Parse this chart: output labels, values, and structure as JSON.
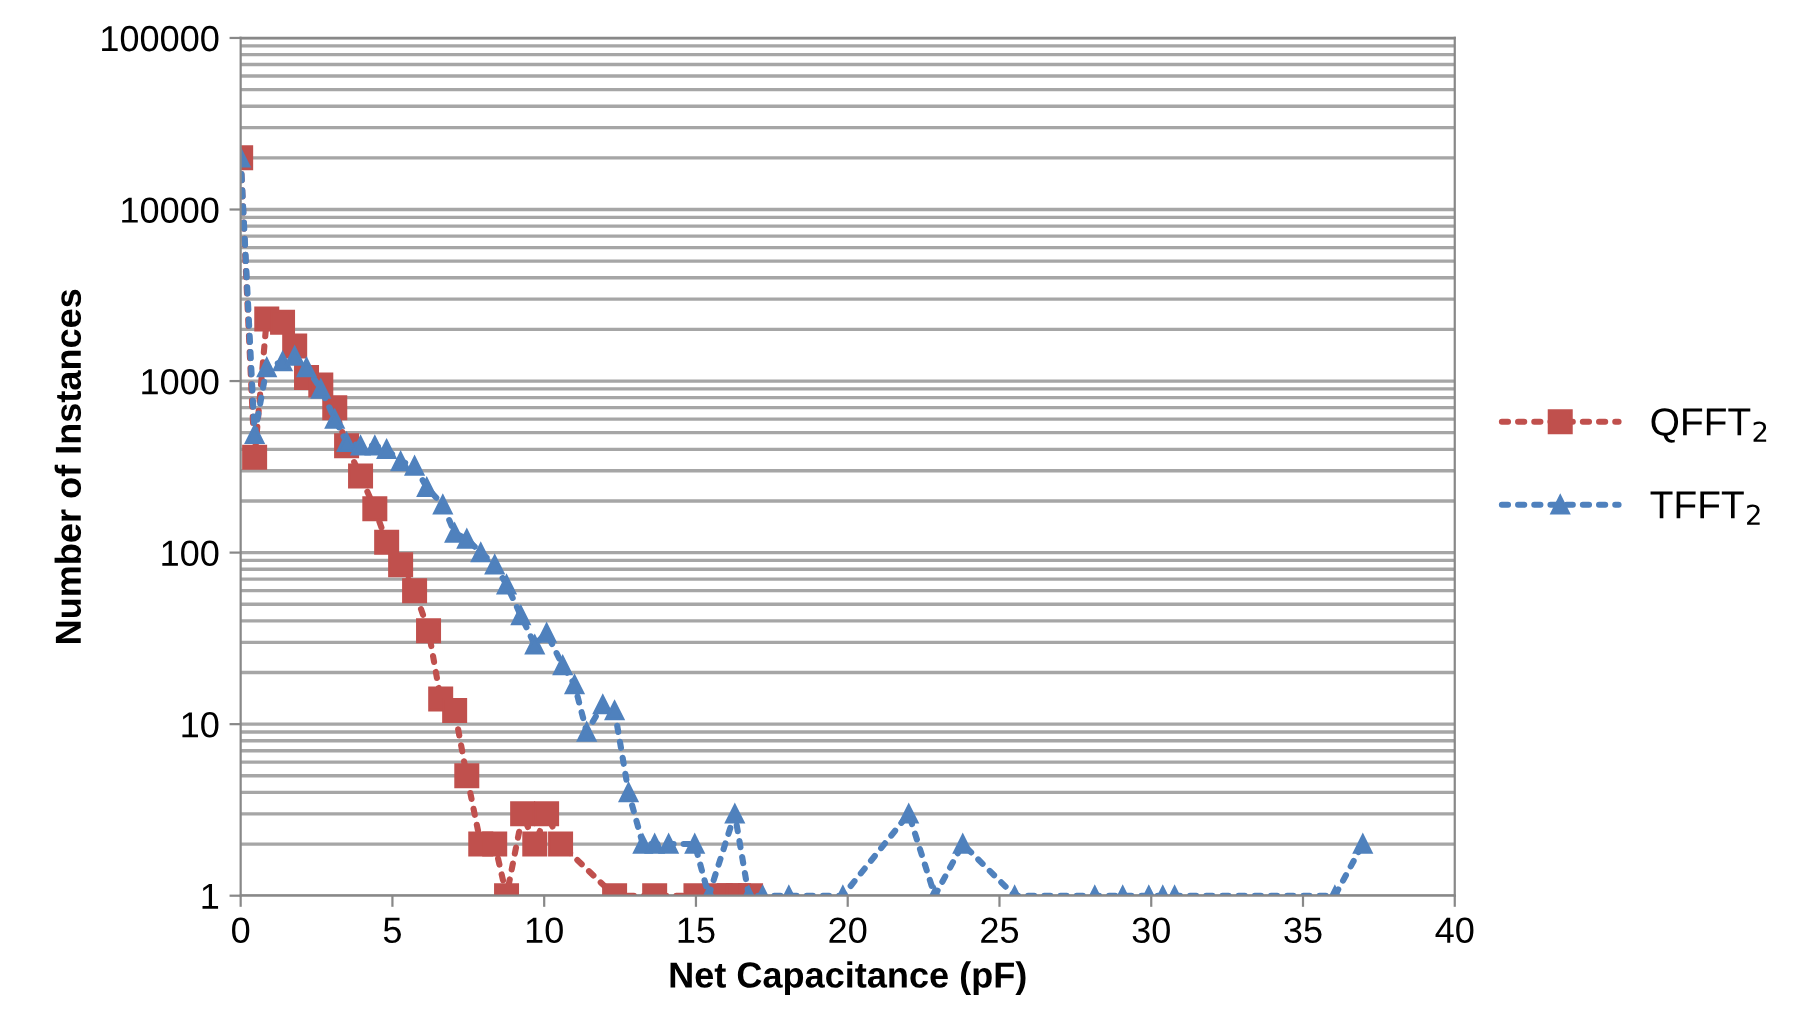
{
  "chart_data": {
    "type": "line",
    "xlabel": "Net Capacitance (pF)",
    "ylabel": "Number of Instances",
    "log": "y",
    "grid": "y",
    "legend": "right",
    "line_style": "dotted",
    "xlim": [
      0,
      40
    ],
    "xticks": [
      0,
      5,
      10,
      15,
      20,
      25,
      30,
      35,
      40
    ],
    "ylim": [
      1,
      100000
    ],
    "yticks": [
      1,
      10,
      100,
      1000,
      10000,
      100000
    ],
    "series": [
      {
        "name": "QFFT$_{2}$",
        "color": "#c0504d",
        "marker": "square",
        "x": [
          0,
          0.46,
          0.86,
          1.38,
          1.78,
          2.17,
          2.64,
          3.1,
          3.49,
          3.95,
          4.42,
          4.81,
          5.27,
          5.73,
          6.19,
          6.59,
          7.05,
          7.45,
          7.91,
          8.37,
          8.76,
          9.29,
          9.69,
          10.08,
          10.54,
          12.32,
          13.64,
          15.0,
          15.8,
          16.1,
          16.4,
          16.8
        ],
        "values": [
          20000,
          360,
          2300,
          2200,
          1600,
          1050,
          950,
          700,
          420,
          280,
          180,
          115,
          85,
          60,
          35,
          14,
          12,
          5,
          2,
          2,
          1,
          3,
          2,
          3,
          2,
          1,
          1,
          1,
          1,
          1,
          1,
          1
        ]
      },
      {
        "name": "TFFT$_{2}$",
        "color": "#4f81bd",
        "marker": "triangle",
        "x": [
          0,
          0.46,
          0.86,
          1.38,
          1.78,
          2.17,
          2.64,
          3.1,
          3.49,
          3.95,
          4.42,
          4.81,
          5.27,
          5.73,
          6.13,
          6.66,
          7.05,
          7.45,
          7.91,
          8.37,
          8.76,
          9.23,
          9.69,
          10.08,
          10.61,
          11.0,
          11.4,
          11.93,
          12.32,
          12.78,
          13.25,
          13.64,
          14.1,
          14.96,
          15.42,
          16.28,
          16.74,
          17.2,
          18.06,
          19.84,
          22.01,
          22.87,
          23.79,
          25.5,
          28.14,
          29.06,
          29.92,
          30.38,
          30.77,
          36.05,
          36.97
        ],
        "values": [
          20000,
          490,
          1200,
          1300,
          1400,
          1200,
          900,
          600,
          440,
          420,
          420,
          400,
          340,
          320,
          240,
          190,
          130,
          120,
          100,
          85,
          65,
          43,
          29,
          34,
          22,
          17,
          9,
          13,
          12,
          4,
          2,
          2,
          2,
          2,
          1,
          3,
          1,
          1,
          1,
          1,
          3,
          1,
          2,
          1,
          1,
          1,
          1,
          1,
          1,
          1,
          2
        ]
      }
    ]
  }
}
